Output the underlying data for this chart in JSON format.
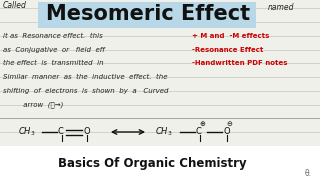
{
  "bg_color": "#f0f0eb",
  "ruled_line_color": "#c8cfc8",
  "title": "Mesomeric Effect",
  "title_bg": "#b8d8e8",
  "title_color": "#111111",
  "subtitle": "Basics Of Organic Chemistry",
  "subtitle_color": "#111111",
  "text_color": "#222222",
  "red_color": "#cc0000",
  "red_items": [
    "+ M and  -M effects",
    "-Resonance Effect",
    "-Handwritten PDF notes"
  ],
  "body_lines": [
    "it as  Resonance effect.  this",
    "as  Conjugative  or   field  eff",
    "the effect  is  transmitted  in",
    "Similar  manner  as  the  inductive  effect.  the",
    "shifting  of  electrons  is  shown  by  a   Curved",
    "         arrow  (⌣→)"
  ],
  "called_text": "Called",
  "named_text": "named",
  "theta_text": "θ."
}
